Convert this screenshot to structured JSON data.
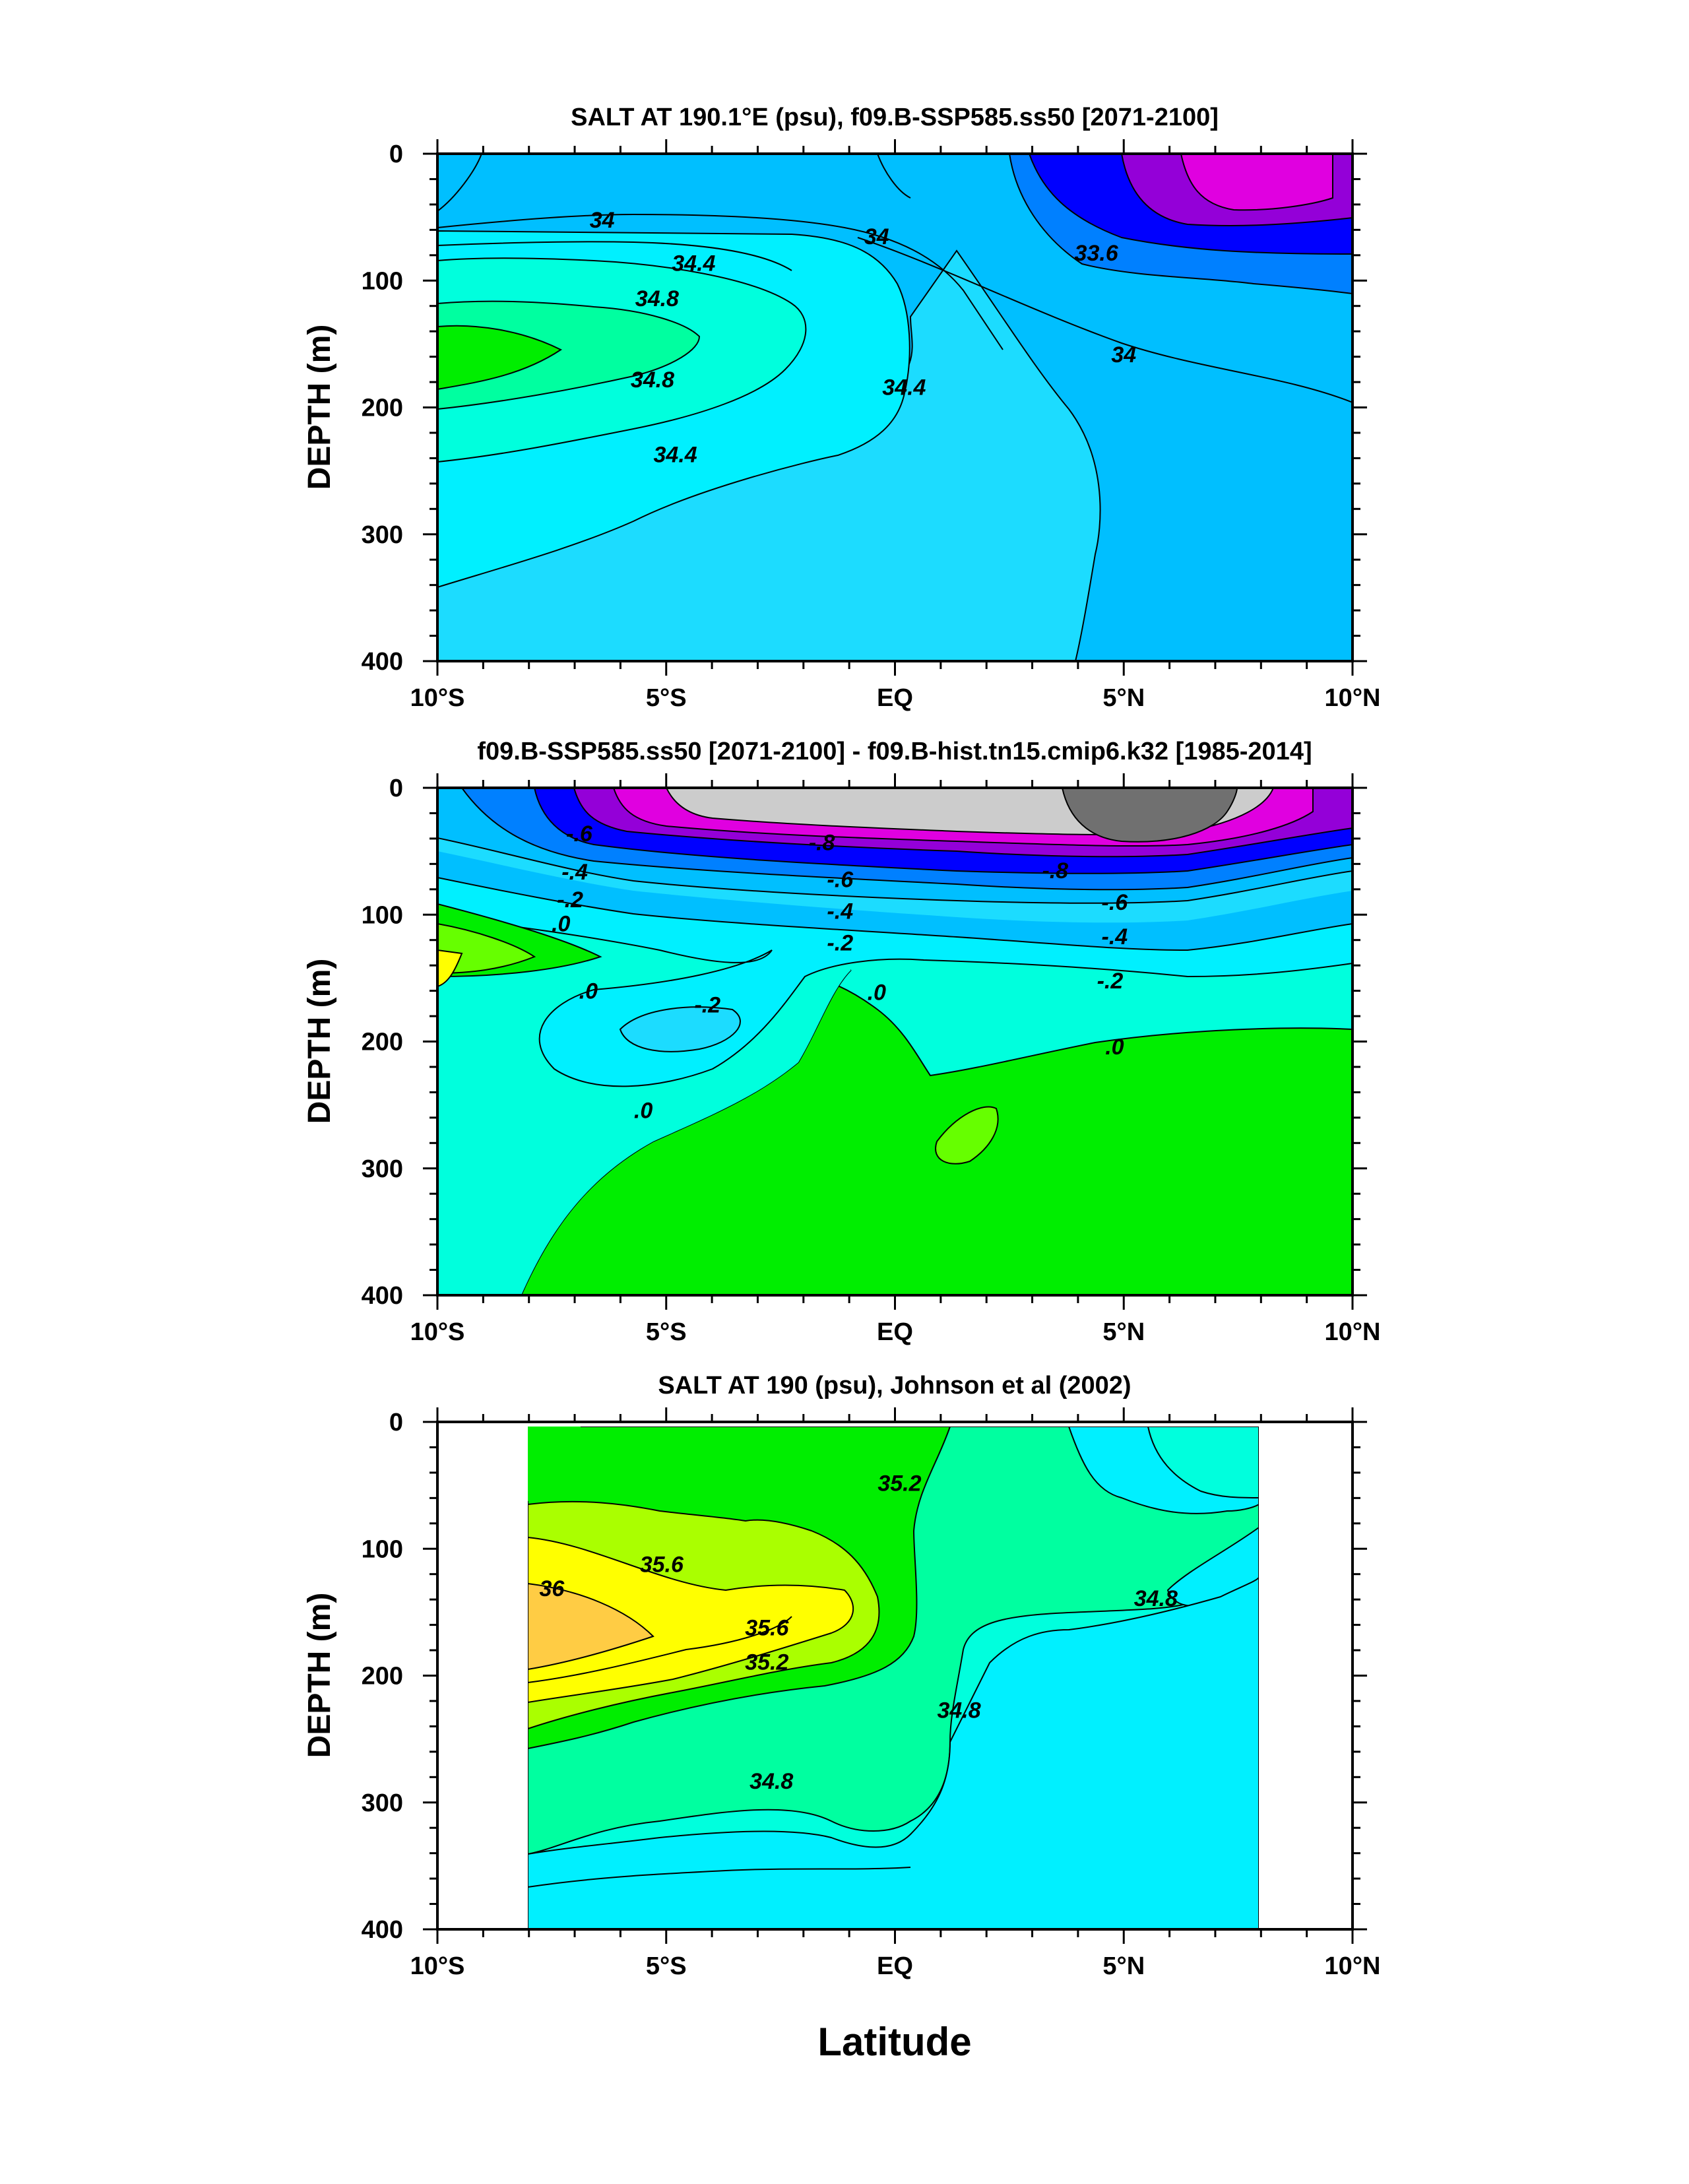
{
  "chart_data": [
    {
      "type": "contour",
      "title": "SALT AT 190.1°E (psu), f09.B-SSP585.ss50 [2071-2100]",
      "ylabel": "DEPTH (m)",
      "xlabel": "",
      "x_ticks": [
        "10°S",
        "5°S",
        "EQ",
        "5°N",
        "10°N"
      ],
      "x_tick_values": [
        -10,
        -5,
        0,
        5,
        10
      ],
      "y_ticks": [
        "0",
        "100",
        "200",
        "300",
        "400"
      ],
      "y_tick_values": [
        0,
        100,
        200,
        300,
        400
      ],
      "xlim": [
        -10,
        10
      ],
      "ylim": [
        0,
        400
      ],
      "y_inverted": true,
      "data_x_range": [
        -10,
        10
      ],
      "contour_labels": [
        {
          "text": "34",
          "x": -6.4,
          "y": 52
        },
        {
          "text": "34",
          "x": -0.4,
          "y": 65
        },
        {
          "text": "33.6",
          "x": 4.4,
          "y": 78
        },
        {
          "text": "34.4",
          "x": -4.4,
          "y": 86
        },
        {
          "text": "34.8",
          "x": -5.2,
          "y": 114
        },
        {
          "text": "34.8",
          "x": -5.3,
          "y": 178
        },
        {
          "text": "34.4",
          "x": 0.2,
          "y": 184
        },
        {
          "text": "34.4",
          "x": -4.8,
          "y": 237
        },
        {
          "text": "34",
          "x": 5.0,
          "y": 158
        }
      ]
    },
    {
      "type": "contour",
      "title": "f09.B-SSP585.ss50 [2071-2100] - f09.B-hist.tn15.cmip6.k32 [1985-2014]",
      "ylabel": "DEPTH (m)",
      "xlabel": "",
      "x_ticks": [
        "10°S",
        "5°S",
        "EQ",
        "5°N",
        "10°N"
      ],
      "x_tick_values": [
        -10,
        -5,
        0,
        5,
        10
      ],
      "y_ticks": [
        "0",
        "100",
        "200",
        "300",
        "400"
      ],
      "y_tick_values": [
        0,
        100,
        200,
        300,
        400
      ],
      "xlim": [
        -10,
        10
      ],
      "ylim": [
        0,
        400
      ],
      "y_inverted": true,
      "data_x_range": [
        -10,
        10
      ],
      "contour_labels": [
        {
          "text": "-.6",
          "x": -6.9,
          "y": 36
        },
        {
          "text": "-.4",
          "x": -7.0,
          "y": 66
        },
        {
          "text": "-.2",
          "x": -7.1,
          "y": 88
        },
        {
          "text": ".0",
          "x": -7.3,
          "y": 107
        },
        {
          "text": "-.8",
          "x": -1.6,
          "y": 43
        },
        {
          "text": "-.6",
          "x": -1.2,
          "y": 72
        },
        {
          "text": "-.4",
          "x": -1.2,
          "y": 97
        },
        {
          "text": "-.2",
          "x": -1.2,
          "y": 122
        },
        {
          "text": "-.8",
          "x": 3.5,
          "y": 65
        },
        {
          "text": "-.6",
          "x": 4.8,
          "y": 90
        },
        {
          "text": "-.4",
          "x": 4.8,
          "y": 117
        },
        {
          "text": "-.2",
          "x": 4.7,
          "y": 152
        },
        {
          "text": ".0",
          "x": -6.7,
          "y": 160
        },
        {
          "text": "-.2",
          "x": -4.1,
          "y": 171
        },
        {
          "text": ".0",
          "x": -0.4,
          "y": 161
        },
        {
          "text": ".0",
          "x": -5.5,
          "y": 254
        },
        {
          "text": ".0",
          "x": 4.8,
          "y": 204
        }
      ]
    },
    {
      "type": "contour",
      "title": "SALT AT 190 (psu), Johnson et al (2002)",
      "ylabel": "DEPTH (m)",
      "xlabel": "Latitude",
      "x_ticks": [
        "10°S",
        "5°S",
        "EQ",
        "5°N",
        "10°N"
      ],
      "x_tick_values": [
        -10,
        -5,
        0,
        5,
        10
      ],
      "y_ticks": [
        "0",
        "100",
        "200",
        "300",
        "400"
      ],
      "y_tick_values": [
        0,
        100,
        200,
        300,
        400
      ],
      "xlim": [
        -10,
        10
      ],
      "ylim": [
        0,
        400
      ],
      "y_inverted": true,
      "data_x_range": [
        -8,
        8
      ],
      "contour_labels": [
        {
          "text": "35.2",
          "x": 0.1,
          "y": 48
        },
        {
          "text": "35.6",
          "x": -5.1,
          "y": 112
        },
        {
          "text": "36",
          "x": -7.5,
          "y": 131
        },
        {
          "text": "35.6",
          "x": -2.8,
          "y": 162
        },
        {
          "text": "35.2",
          "x": -2.8,
          "y": 189
        },
        {
          "text": "34.8",
          "x": 1.4,
          "y": 227
        },
        {
          "text": "34.8",
          "x": 5.7,
          "y": 139
        },
        {
          "text": "34.8",
          "x": -2.7,
          "y": 283
        }
      ]
    }
  ],
  "colors": {
    "magenta": "#e000e0",
    "violet": "#9400d8",
    "blue": "#0000ff",
    "royal": "#0080ff",
    "sky": "#00bfff",
    "light-sky": "#1cdcff",
    "cyan": "#00f0ff",
    "aqua": "#00ffdd",
    "spring": "#00ffa0",
    "green": "#00ee00",
    "lime": "#66ff00",
    "yellow-green": "#aaff00",
    "yellow": "#ffff00",
    "orange": "#ffcc44",
    "light-gray": "#cccccc",
    "dark-gray": "#707070"
  }
}
